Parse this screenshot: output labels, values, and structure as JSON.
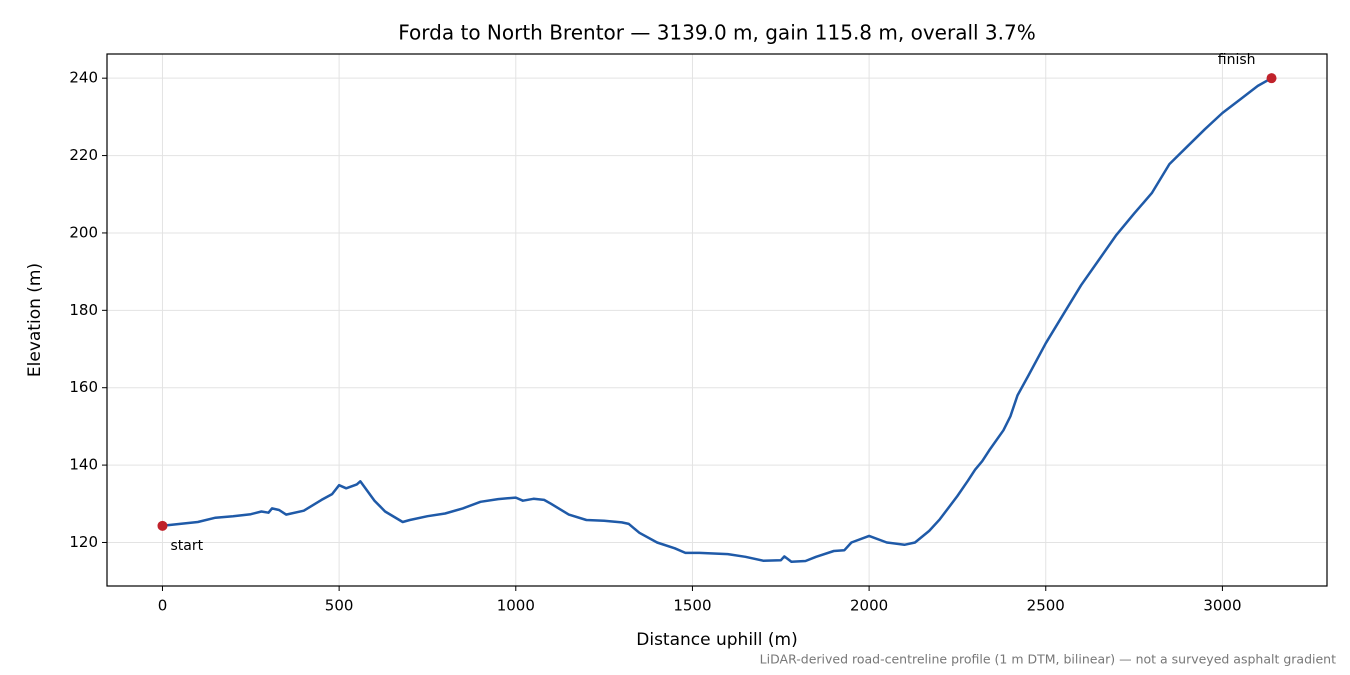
{
  "chart_data": {
    "type": "line",
    "title": "Forda to North Brentor — 3139.0 m, gain 115.8 m, overall 3.7%",
    "x_label": "Distance uphill (m)",
    "y_label": "Elevation (m)",
    "note": "LiDAR-derived road-centreline profile (1 m DTM, bilinear) — not a surveyed asphalt gradient",
    "color": "#1f5aa8",
    "marker_color": "#c0222b",
    "grid": true,
    "x": [
      0,
      50,
      100,
      150,
      200,
      250,
      280,
      300,
      310,
      330,
      350,
      400,
      450,
      480,
      500,
      520,
      550,
      560,
      600,
      630,
      680,
      700,
      750,
      800,
      850,
      900,
      950,
      1000,
      1020,
      1050,
      1080,
      1100,
      1150,
      1200,
      1250,
      1300,
      1320,
      1350,
      1400,
      1450,
      1480,
      1520,
      1600,
      1650,
      1700,
      1750,
      1760,
      1780,
      1820,
      1850,
      1900,
      1930,
      1950,
      2000,
      2050,
      2100,
      2130,
      2170,
      2200,
      2250,
      2280,
      2300,
      2320,
      2340,
      2380,
      2400,
      2420,
      2450,
      2500,
      2550,
      2600,
      2650,
      2700,
      2750,
      2800,
      2850,
      2900,
      2950,
      3000,
      3050,
      3100,
      3139
    ],
    "values": [
      124.3,
      124.8,
      125.3,
      126.4,
      126.8,
      127.3,
      128,
      127.7,
      128.8,
      128.4,
      127.2,
      128.2,
      131,
      132.5,
      134.8,
      134,
      135,
      135.8,
      130.8,
      128,
      125.3,
      125.8,
      126.8,
      127.5,
      128.8,
      130.5,
      131.2,
      131.6,
      130.8,
      131.3,
      131,
      130,
      127.2,
      125.8,
      125.6,
      125.2,
      124.8,
      122.5,
      120,
      118.5,
      117.3,
      117.3,
      117,
      116.3,
      115.3,
      115.4,
      116.4,
      115,
      115.2,
      116.3,
      117.8,
      118,
      120,
      121.7,
      120,
      119.4,
      120,
      123,
      126,
      132,
      136,
      138.8,
      141,
      143.8,
      149,
      152.6,
      158,
      163,
      171.5,
      179,
      186.5,
      193,
      199.5,
      205,
      210.3,
      217.8,
      222.3,
      226.8,
      231,
      234.5,
      238,
      240
    ],
    "markers": [
      {
        "label": "start",
        "x": 0,
        "y": 124.3
      },
      {
        "label": "finish",
        "x": 3139,
        "y": 240
      }
    ],
    "xlim": [
      -157,
      3296
    ],
    "xticks": [
      0,
      500,
      1000,
      1500,
      2000,
      2500,
      3000
    ],
    "ylim": [
      108.75,
      246.25
    ],
    "yticks": [
      120,
      140,
      160,
      180,
      200,
      220,
      240
    ]
  }
}
